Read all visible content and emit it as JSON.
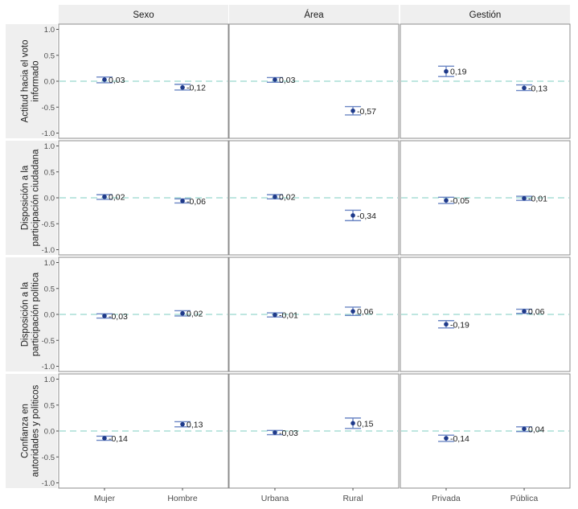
{
  "chart_data": {
    "type": "scatter",
    "style": "faceted point estimates with error bars",
    "column_facets": [
      "Sexo",
      "Área",
      "Gestión"
    ],
    "row_facets": [
      [
        "Actitud hacia el voto",
        "informado"
      ],
      [
        "Disposición a la",
        "participación ciudadana"
      ],
      [
        "Disposición a la",
        "participación política"
      ],
      [
        "Confianza en",
        "autoridades y políticos"
      ]
    ],
    "categories": [
      [
        "Mujer",
        "Hombre"
      ],
      [
        "Urbana",
        "Rural"
      ],
      [
        "Privada",
        "Pública"
      ]
    ],
    "ylim": [
      -1.0,
      1.0
    ],
    "yticks": [
      "1.0",
      "0.5",
      "0.0",
      "-0.5",
      "-1.0"
    ],
    "reference_line": 0.0,
    "grid": false,
    "colors": {
      "point": "#1f3a8a",
      "errorbar": "#6b86c4",
      "reference": "#a8ddd6",
      "strip": "#efefef",
      "panel_border": "#8c8c8c"
    },
    "panels": [
      {
        "row": 0,
        "col": 0,
        "points": [
          {
            "x": "Mujer",
            "y": 0.03,
            "lo": -0.03,
            "hi": 0.08,
            "label": "0,03"
          },
          {
            "x": "Hombre",
            "y": -0.12,
            "lo": -0.17,
            "hi": -0.06,
            "label": "-0,12"
          }
        ]
      },
      {
        "row": 0,
        "col": 1,
        "points": [
          {
            "x": "Urbana",
            "y": 0.03,
            "lo": -0.02,
            "hi": 0.07,
            "label": "0,03"
          },
          {
            "x": "Rural",
            "y": -0.57,
            "lo": -0.65,
            "hi": -0.49,
            "label": "-0,57"
          }
        ]
      },
      {
        "row": 0,
        "col": 2,
        "points": [
          {
            "x": "Privada",
            "y": 0.19,
            "lo": 0.09,
            "hi": 0.29,
            "label": "0,19"
          },
          {
            "x": "Pública",
            "y": -0.13,
            "lo": -0.18,
            "hi": -0.07,
            "label": "-0,13"
          }
        ]
      },
      {
        "row": 1,
        "col": 0,
        "points": [
          {
            "x": "Mujer",
            "y": 0.02,
            "lo": -0.03,
            "hi": 0.06,
            "label": "0,02"
          },
          {
            "x": "Hombre",
            "y": -0.06,
            "lo": -0.1,
            "hi": -0.02,
            "label": "-0,06"
          }
        ]
      },
      {
        "row": 1,
        "col": 1,
        "points": [
          {
            "x": "Urbana",
            "y": 0.02,
            "lo": -0.02,
            "hi": 0.06,
            "label": "0,02"
          },
          {
            "x": "Rural",
            "y": -0.34,
            "lo": -0.44,
            "hi": -0.24,
            "label": "-0,34"
          }
        ]
      },
      {
        "row": 1,
        "col": 2,
        "points": [
          {
            "x": "Privada",
            "y": -0.05,
            "lo": -0.11,
            "hi": 0.01,
            "label": "-0,05"
          },
          {
            "x": "Pública",
            "y": -0.01,
            "lo": -0.05,
            "hi": 0.03,
            "label": "-0,01"
          }
        ]
      },
      {
        "row": 2,
        "col": 0,
        "points": [
          {
            "x": "Mujer",
            "y": -0.03,
            "lo": -0.07,
            "hi": 0.01,
            "label": "-0,03"
          },
          {
            "x": "Hombre",
            "y": 0.02,
            "lo": -0.03,
            "hi": 0.07,
            "label": "0,02"
          }
        ]
      },
      {
        "row": 2,
        "col": 1,
        "points": [
          {
            "x": "Urbana",
            "y": -0.01,
            "lo": -0.05,
            "hi": 0.03,
            "label": "-0,01"
          },
          {
            "x": "Rural",
            "y": 0.06,
            "lo": -0.02,
            "hi": 0.14,
            "label": "0,06"
          }
        ]
      },
      {
        "row": 2,
        "col": 2,
        "points": [
          {
            "x": "Privada",
            "y": -0.19,
            "lo": -0.26,
            "hi": -0.12,
            "label": "-0,19"
          },
          {
            "x": "Pública",
            "y": 0.06,
            "lo": 0.02,
            "hi": 0.1,
            "label": "0,06"
          }
        ]
      },
      {
        "row": 3,
        "col": 0,
        "points": [
          {
            "x": "Mujer",
            "y": -0.14,
            "lo": -0.18,
            "hi": -0.1,
            "label": "-0,14"
          },
          {
            "x": "Hombre",
            "y": 0.13,
            "lo": 0.08,
            "hi": 0.18,
            "label": "0,13"
          }
        ]
      },
      {
        "row": 3,
        "col": 1,
        "points": [
          {
            "x": "Urbana",
            "y": -0.03,
            "lo": -0.07,
            "hi": 0.01,
            "label": "-0,03"
          },
          {
            "x": "Rural",
            "y": 0.15,
            "lo": 0.05,
            "hi": 0.25,
            "label": "0,15"
          }
        ]
      },
      {
        "row": 3,
        "col": 2,
        "points": [
          {
            "x": "Privada",
            "y": -0.14,
            "lo": -0.2,
            "hi": -0.08,
            "label": "-0,14"
          },
          {
            "x": "Pública",
            "y": 0.04,
            "lo": -0.01,
            "hi": 0.08,
            "label": "0,04"
          }
        ]
      }
    ]
  }
}
